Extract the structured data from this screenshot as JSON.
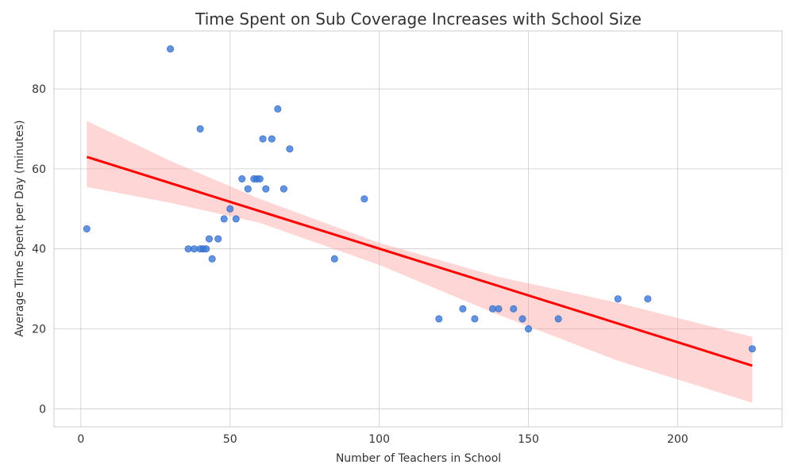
{
  "chart_data": {
    "type": "scatter",
    "title": "Time Spent on Sub Coverage Increases with School Size",
    "xlabel": "Number of Teachers in School",
    "ylabel": "Average Time Spent per Day (minutes)",
    "xlim": [
      -9,
      235
    ],
    "ylim": [
      -4.5,
      94.5
    ],
    "xticks": [
      0,
      50,
      100,
      150,
      200
    ],
    "yticks": [
      0,
      20,
      40,
      60,
      80
    ],
    "grid": true,
    "colors": {
      "points": "#3a78d8",
      "regression": "#ff0000",
      "band": "#ff9999"
    },
    "points": [
      {
        "x": 2,
        "y": 45
      },
      {
        "x": 30,
        "y": 90
      },
      {
        "x": 36,
        "y": 40
      },
      {
        "x": 38,
        "y": 40
      },
      {
        "x": 40,
        "y": 70
      },
      {
        "x": 40,
        "y": 40
      },
      {
        "x": 41,
        "y": 40
      },
      {
        "x": 42,
        "y": 40
      },
      {
        "x": 43,
        "y": 42.5
      },
      {
        "x": 44,
        "y": 37.5
      },
      {
        "x": 46,
        "y": 42.5
      },
      {
        "x": 48,
        "y": 47.5
      },
      {
        "x": 50,
        "y": 50
      },
      {
        "x": 52,
        "y": 47.5
      },
      {
        "x": 54,
        "y": 57.5
      },
      {
        "x": 56,
        "y": 55
      },
      {
        "x": 58,
        "y": 57.5
      },
      {
        "x": 59,
        "y": 57.5
      },
      {
        "x": 60,
        "y": 57.5
      },
      {
        "x": 61,
        "y": 67.5
      },
      {
        "x": 62,
        "y": 55
      },
      {
        "x": 64,
        "y": 67.5
      },
      {
        "x": 66,
        "y": 75
      },
      {
        "x": 68,
        "y": 55
      },
      {
        "x": 70,
        "y": 65
      },
      {
        "x": 85,
        "y": 37.5
      },
      {
        "x": 95,
        "y": 52.5
      },
      {
        "x": 120,
        "y": 22.5
      },
      {
        "x": 128,
        "y": 25
      },
      {
        "x": 132,
        "y": 22.5
      },
      {
        "x": 138,
        "y": 25
      },
      {
        "x": 140,
        "y": 25
      },
      {
        "x": 145,
        "y": 25
      },
      {
        "x": 148,
        "y": 22.5
      },
      {
        "x": 150,
        "y": 20
      },
      {
        "x": 160,
        "y": 22.5
      },
      {
        "x": 180,
        "y": 27.5
      },
      {
        "x": 190,
        "y": 27.5
      },
      {
        "x": 225,
        "y": 15
      }
    ],
    "regression": {
      "x": [
        2,
        225
      ],
      "y": [
        63,
        10.8
      ],
      "ci_x": [
        2,
        30,
        60,
        100,
        140,
        180,
        225
      ],
      "ci_upper": [
        72,
        62,
        52.5,
        41.5,
        33,
        26.5,
        18
      ],
      "ci_lower": [
        55.5,
        51.5,
        46.5,
        36,
        23.5,
        12,
        1.5
      ]
    }
  }
}
